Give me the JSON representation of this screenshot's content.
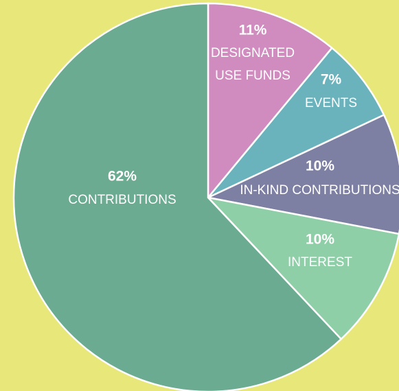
{
  "chart_data": {
    "type": "pie",
    "categories": [
      "DESIGNATED USE FUNDS",
      "EVENTS",
      "IN-KIND CONTRIBUTIONS",
      "INTEREST",
      "CONTRIBUTIONS"
    ],
    "values": [
      11,
      7,
      10,
      10,
      62
    ],
    "value_labels": [
      "11%",
      "7%",
      "10%",
      "10%",
      "62%"
    ],
    "colors": [
      "#d08bbf",
      "#6ab3bd",
      "#7d7fa3",
      "#8fcfa8",
      "#6aab91"
    ]
  }
}
